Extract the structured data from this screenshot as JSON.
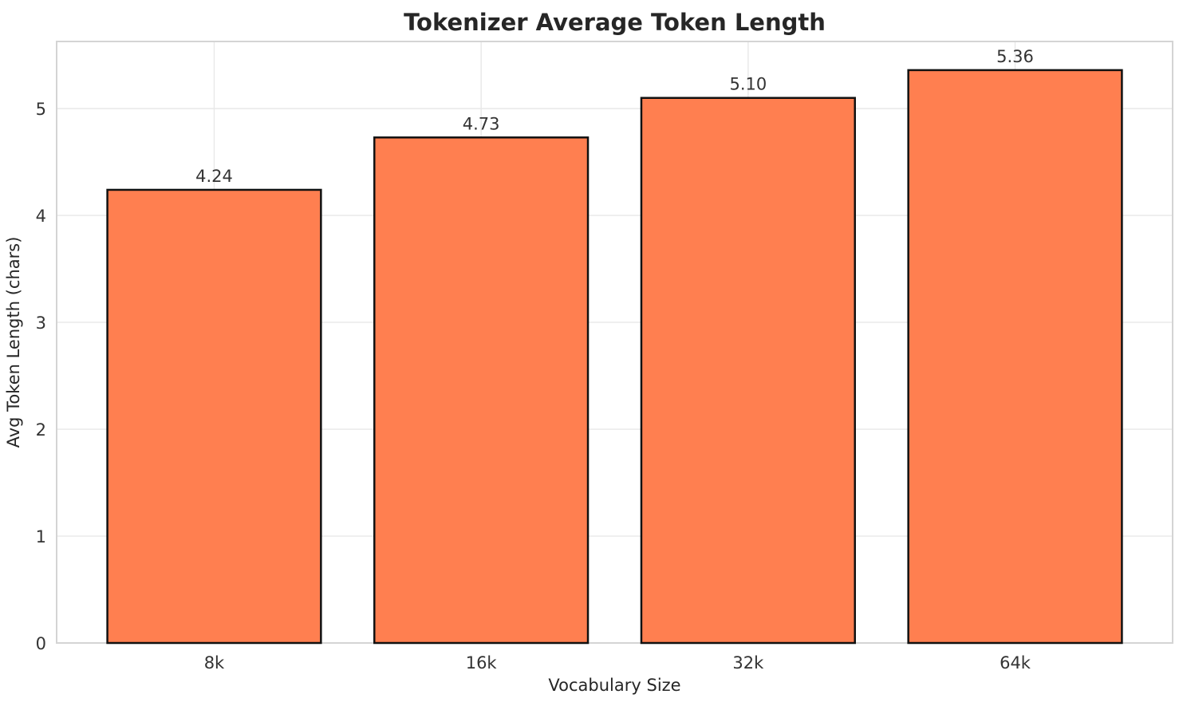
{
  "chart_data": {
    "type": "bar",
    "title": "Tokenizer Average Token Length",
    "xlabel": "Vocabulary Size",
    "ylabel": "Avg Token Length (chars)",
    "categories": [
      "8k",
      "16k",
      "32k",
      "64k"
    ],
    "values": [
      4.24,
      4.73,
      5.1,
      5.36
    ],
    "value_labels": [
      "4.24",
      "4.73",
      "5.10",
      "5.36"
    ],
    "yticks": [
      0,
      1,
      2,
      3,
      4,
      5
    ],
    "ytick_labels": [
      "0",
      "1",
      "2",
      "3",
      "4",
      "5"
    ],
    "ylim": [
      0,
      5.628
    ],
    "bar_width_fraction": 0.8,
    "grid": true,
    "legend_position": "none",
    "colors": {
      "bar_fill": "#FF7F50",
      "bar_edge": "#111111",
      "grid_line": "#e8e8e8",
      "spine": "#d4d4d4",
      "text": "#333333",
      "title_text": "#262626",
      "background": "#ffffff"
    }
  }
}
